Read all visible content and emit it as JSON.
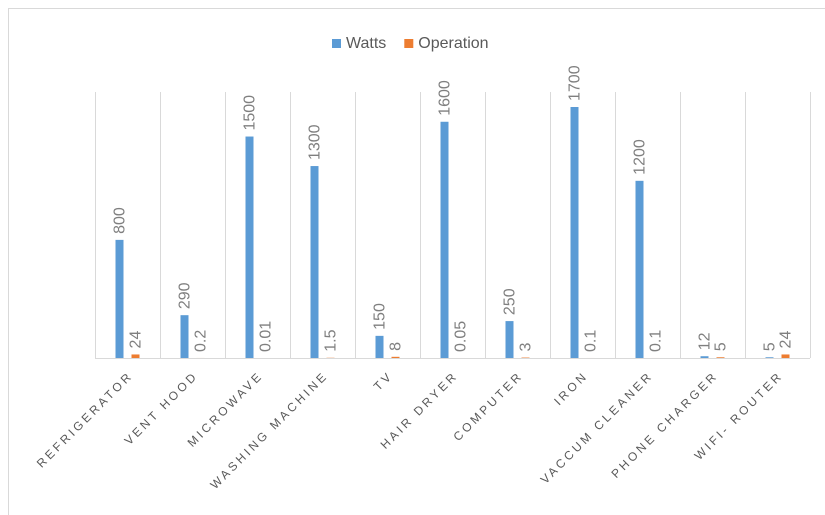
{
  "chart_data": {
    "type": "bar",
    "categories": [
      "REFRIGERATOR",
      "VENT HOOD",
      "MICROWAVE",
      "WASHING MACHINE",
      "TV",
      "HAIR DRYER",
      "COMPUTER",
      "IRON",
      "VACCUM CLEANER",
      "PHONE CHARGER",
      "WIFI- ROUTER"
    ],
    "series": [
      {
        "name": "Watts",
        "color": "#5b9bd5",
        "values": [
          800,
          290,
          1500,
          1300,
          150,
          1600,
          250,
          1700,
          1200,
          12,
          5
        ]
      },
      {
        "name": "Operation",
        "color": "#ed7d31",
        "values": [
          24,
          0.2,
          0.01,
          1.5,
          8,
          0.05,
          3,
          0.1,
          0.1,
          5,
          24
        ]
      }
    ],
    "ylim": [
      0,
      1700
    ],
    "grid": true,
    "legend": "top"
  }
}
